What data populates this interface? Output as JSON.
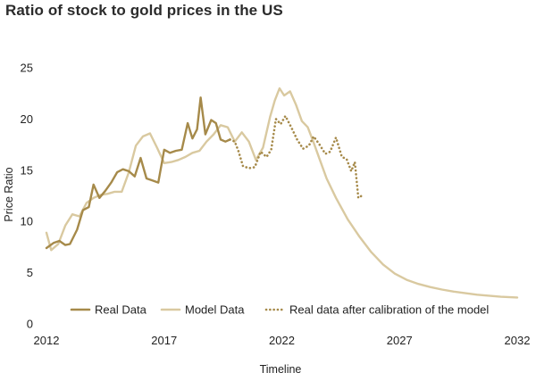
{
  "chart_data": {
    "type": "line",
    "title": "Ratio of stock to gold prices in the US",
    "xlabel": "Timeline",
    "ylabel": "Price Ratio",
    "xlim": [
      2012,
      2032
    ],
    "ylim": [
      0,
      25
    ],
    "xticks": [
      2012,
      2017,
      2022,
      2027,
      2032
    ],
    "yticks": [
      0,
      5,
      10,
      15,
      20,
      25
    ],
    "grid": false,
    "legend_position": "bottom",
    "series": [
      {
        "name": "Real Data",
        "color": "#a68a4a",
        "style": "solid",
        "x": [
          2012.0,
          2012.3,
          2012.55,
          2012.8,
          2013.0,
          2013.3,
          2013.55,
          2013.8,
          2014.0,
          2014.25,
          2014.5,
          2014.75,
          2015.0,
          2015.25,
          2015.5,
          2015.75,
          2016.0,
          2016.25,
          2016.5,
          2016.75,
          2017.0,
          2017.25,
          2017.5,
          2017.75,
          2018.0,
          2018.2,
          2018.4,
          2018.55,
          2018.75,
          2019.0,
          2019.2,
          2019.4,
          2019.6,
          2019.8
        ],
        "y": [
          7.4,
          7.9,
          8.1,
          7.7,
          7.8,
          9.2,
          11.1,
          11.4,
          13.6,
          12.3,
          13.0,
          13.8,
          14.8,
          15.1,
          14.9,
          14.4,
          16.2,
          14.2,
          14.0,
          13.8,
          17.0,
          16.7,
          16.9,
          17.0,
          19.6,
          18.1,
          19.0,
          22.1,
          18.5,
          19.9,
          19.6,
          18.0,
          17.8,
          18.0
        ]
      },
      {
        "name": "Model Data",
        "color": "#d9c9a0",
        "style": "solid",
        "x": [
          2012.0,
          2012.2,
          2012.5,
          2012.8,
          2013.1,
          2013.4,
          2013.7,
          2014.0,
          2014.3,
          2014.6,
          2014.9,
          2015.2,
          2015.5,
          2015.8,
          2016.1,
          2016.4,
          2016.7,
          2017.0,
          2017.3,
          2017.6,
          2017.9,
          2018.2,
          2018.5,
          2018.8,
          2019.1,
          2019.4,
          2019.7,
          2020.0,
          2020.3,
          2020.6,
          2020.9,
          2021.2,
          2021.5,
          2021.7,
          2021.9,
          2022.1,
          2022.35,
          2022.6,
          2022.85,
          2023.1,
          2023.35,
          2023.6,
          2023.9,
          2024.3,
          2024.8,
          2025.3,
          2025.8,
          2026.3,
          2026.8,
          2027.3,
          2027.8,
          2028.3,
          2028.8,
          2029.3,
          2029.8,
          2030.3,
          2030.8,
          2031.3,
          2031.8,
          2032.0
        ],
        "y": [
          8.9,
          7.2,
          7.8,
          9.6,
          10.7,
          10.5,
          11.8,
          12.3,
          12.6,
          12.7,
          12.9,
          12.9,
          14.8,
          17.4,
          18.3,
          18.6,
          17.2,
          15.7,
          15.8,
          16.0,
          16.3,
          16.7,
          16.9,
          17.8,
          18.5,
          19.4,
          19.2,
          17.8,
          18.7,
          17.8,
          16.0,
          17.2,
          20.2,
          21.8,
          23.0,
          22.3,
          22.7,
          21.4,
          19.8,
          19.2,
          17.7,
          16.1,
          14.2,
          12.3,
          10.2,
          8.5,
          7.0,
          5.8,
          4.9,
          4.3,
          3.9,
          3.6,
          3.35,
          3.15,
          3.0,
          2.85,
          2.75,
          2.65,
          2.6,
          2.58
        ]
      },
      {
        "name": "Real data after calibration of the model",
        "color": "#a68a4a",
        "style": "dotted",
        "x": [
          2019.8,
          2020.0,
          2020.15,
          2020.35,
          2020.6,
          2020.85,
          2021.1,
          2021.35,
          2021.55,
          2021.75,
          2021.95,
          2022.15,
          2022.4,
          2022.65,
          2022.9,
          2023.15,
          2023.35,
          2023.6,
          2023.85,
          2024.05,
          2024.3,
          2024.55,
          2024.75,
          2024.95,
          2025.1,
          2025.25,
          2025.45
        ],
        "y": [
          18.0,
          17.8,
          16.9,
          15.4,
          15.2,
          15.3,
          16.8,
          16.3,
          17.0,
          20.0,
          19.5,
          20.3,
          19.2,
          18.0,
          17.1,
          17.4,
          18.3,
          17.5,
          16.6,
          16.8,
          18.2,
          16.3,
          16.1,
          14.9,
          15.8,
          12.3,
          12.6
        ]
      }
    ]
  }
}
